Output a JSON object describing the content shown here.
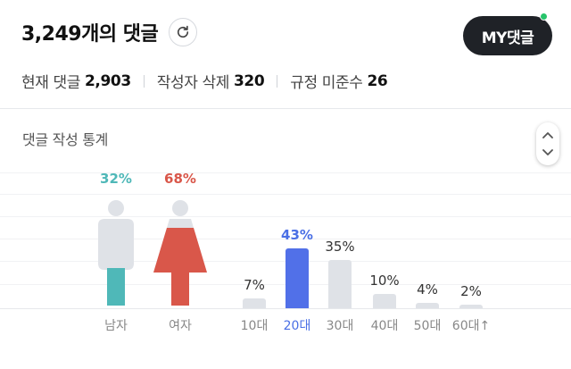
{
  "header": {
    "title": "3,249개의 댓글",
    "my_button": "MY댓글",
    "stats": [
      {
        "label": "현재 댓글",
        "value": "2,903"
      },
      {
        "label": "작성자 삭제",
        "value": "320"
      },
      {
        "label": "규정 미준수",
        "value": "26"
      }
    ]
  },
  "panel": {
    "title": "댓글 작성 통계"
  },
  "colors": {
    "male": "#4fb8b8",
    "female": "#d9574a",
    "highlight": "#5170e8",
    "bar_default": "#dfe2e7",
    "figure_gray": "#dfe2e7"
  },
  "chart_data": [
    {
      "type": "bar",
      "categories": [
        "남자",
        "여자"
      ],
      "values": [
        32,
        68
      ],
      "labels": [
        "32%",
        "68%"
      ]
    },
    {
      "type": "bar",
      "categories": [
        "10대",
        "20대",
        "30대",
        "40대",
        "50대",
        "60대↑"
      ],
      "values": [
        7,
        43,
        35,
        10,
        4,
        2
      ],
      "labels": [
        "7%",
        "43%",
        "35%",
        "10%",
        "4%",
        "2%"
      ],
      "highlight_index": 1
    }
  ]
}
